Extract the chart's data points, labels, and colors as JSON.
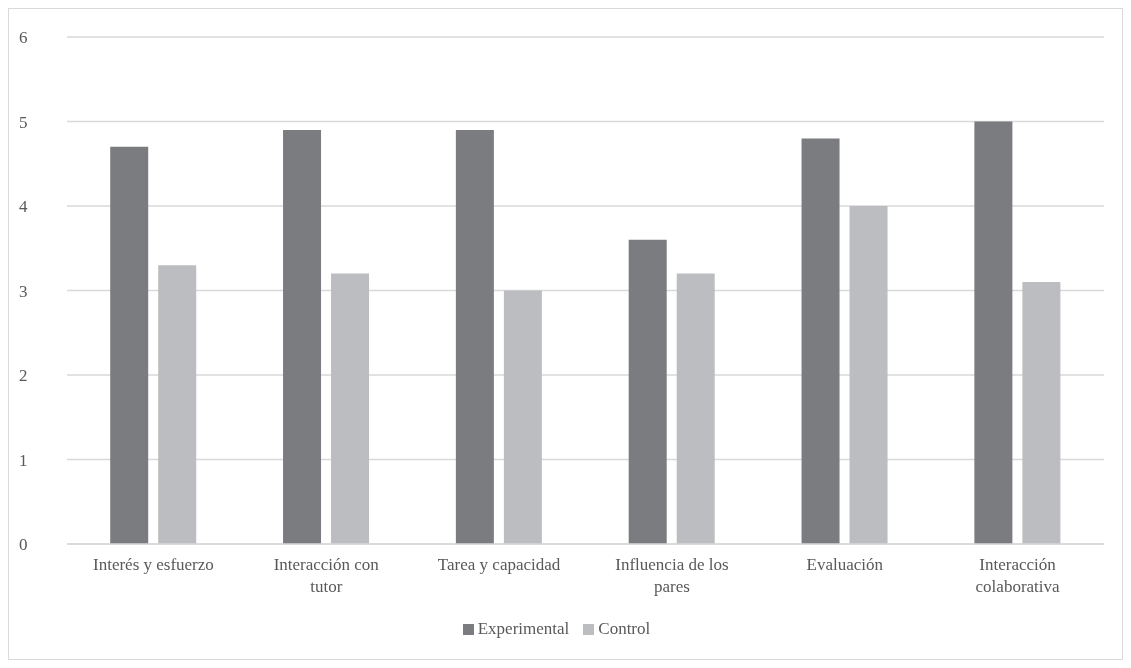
{
  "chart_data": {
    "type": "bar",
    "categories": [
      "Interés y esfuerzo",
      "Interacción con tutor",
      "Tarea y capacidad",
      "Influencia de los pares",
      "Evaluación",
      "Interacción colaborativa"
    ],
    "series": [
      {
        "name": "Experimental",
        "color": "#7b7c80",
        "values": [
          4.7,
          4.9,
          4.9,
          3.6,
          4.8,
          5.0
        ]
      },
      {
        "name": "Control",
        "color": "#bcbdc0",
        "values": [
          3.3,
          3.2,
          3.0,
          3.2,
          4.0,
          3.1
        ]
      }
    ],
    "ylim": [
      0,
      6
    ],
    "yticks": [
      0,
      1,
      2,
      3,
      4,
      5,
      6
    ],
    "grid": "y",
    "legend": "bottom"
  }
}
